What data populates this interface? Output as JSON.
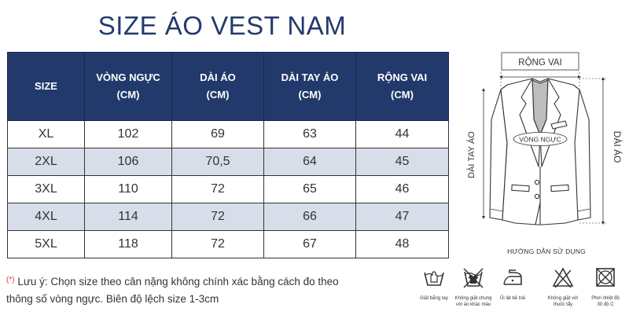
{
  "title": "SIZE ÁO VEST NAM",
  "table": {
    "headers": [
      [
        "SIZE",
        ""
      ],
      [
        "VÒNG NGỰC",
        "(CM)"
      ],
      [
        "DÀI ÁO",
        "(CM)"
      ],
      [
        "DÀI TAY ÁO",
        "(CM)"
      ],
      [
        "RỘNG VAI",
        "(CM)"
      ]
    ],
    "rows": [
      [
        "XL",
        "102",
        "69",
        "63",
        "44"
      ],
      [
        "2XL",
        "106",
        "70,5",
        "64",
        "45"
      ],
      [
        "3XL",
        "110",
        "72",
        "65",
        "46"
      ],
      [
        "4XL",
        "114",
        "72",
        "66",
        "47"
      ],
      [
        "5XL",
        "118",
        "72",
        "67",
        "48"
      ]
    ]
  },
  "diagram": {
    "shoulder": "RỘNG VAI",
    "chest": "VÒNG NGỰC",
    "sleeve": "DÀI TAY ÁO",
    "length": "DÀI ÁO"
  },
  "note": {
    "star": "(*)",
    "line1": "Lưu ý: Chọn size theo cân nặng không chính xác bằng cách đo theo",
    "line2": "thông số vòng ngực. Biên độ lệch size 1-3cm"
  },
  "guide_title": "HƯỚNG DẪN SỬ DỤNG",
  "care": [
    {
      "icon": "hand-wash-icon",
      "l1": "Giặt bằng tay",
      "l2": ""
    },
    {
      "icon": "no-mix-wash-icon",
      "l1": "Không giặt chung",
      "l2": "với áo khác màu"
    },
    {
      "icon": "iron-reverse-icon",
      "l1": "Ủi lật bề trái",
      "l2": ""
    },
    {
      "icon": "no-bleach-icon",
      "l1": "Không giặt với",
      "l2": "thuốc tẩy"
    },
    {
      "icon": "dry-30c-icon",
      "l1": "Phơi nhiệt độ",
      "l2": "30 độ C"
    }
  ]
}
